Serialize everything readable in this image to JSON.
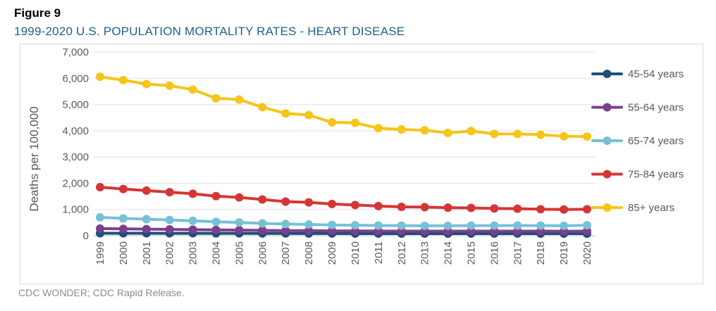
{
  "figure_label": "Figure 9",
  "source_note": "CDC WONDER; CDC Rapid Release.",
  "chart_data": {
    "type": "line",
    "title": "1999-2020 U.S. POPULATION MORTALITY RATES - HEART DISEASE",
    "xlabel": "",
    "ylabel": "Deaths per 100,000",
    "ylim": [
      0,
      7000
    ],
    "yticks": [
      0,
      1000,
      2000,
      3000,
      4000,
      5000,
      6000,
      7000
    ],
    "ytick_labels": [
      "0",
      "1,000",
      "2,000",
      "3,000",
      "4,000",
      "5,000",
      "6,000",
      "7,000"
    ],
    "grid": true,
    "legend_position": "right",
    "x": [
      "1999",
      "2000",
      "2001",
      "2002",
      "2003",
      "2004",
      "2005",
      "2006",
      "2007",
      "2008",
      "2009",
      "2010",
      "2011",
      "2012",
      "2013",
      "2014",
      "2015",
      "2016",
      "2017",
      "2018",
      "2019",
      "2020"
    ],
    "series": [
      {
        "name": "45-54 years",
        "color": "#1f4e79",
        "values": [
          95,
          95,
          93,
          92,
          92,
          90,
          89,
          87,
          86,
          85,
          83,
          82,
          82,
          82,
          82,
          81,
          82,
          82,
          82,
          81,
          80,
          80
        ]
      },
      {
        "name": "55-64 years",
        "color": "#7b3f8f",
        "values": [
          270,
          260,
          250,
          240,
          230,
          220,
          213,
          205,
          195,
          190,
          183,
          180,
          178,
          175,
          175,
          174,
          175,
          175,
          175,
          173,
          172,
          175
        ]
      },
      {
        "name": "65-74 years",
        "color": "#77c1d6",
        "values": [
          700,
          660,
          630,
          600,
          570,
          530,
          505,
          470,
          445,
          430,
          410,
          400,
          390,
          385,
          380,
          380,
          385,
          385,
          390,
          385,
          380,
          400
        ]
      },
      {
        "name": "75-84 years",
        "color": "#d63535",
        "values": [
          1850,
          1780,
          1720,
          1660,
          1600,
          1510,
          1460,
          1380,
          1300,
          1270,
          1210,
          1170,
          1130,
          1100,
          1090,
          1070,
          1060,
          1040,
          1030,
          1010,
          1000,
          1010
        ]
      },
      {
        "name": "85+ years",
        "color": "#f5c518",
        "values": [
          6060,
          5930,
          5780,
          5720,
          5570,
          5240,
          5190,
          4900,
          4660,
          4600,
          4320,
          4300,
          4100,
          4050,
          4020,
          3920,
          3990,
          3880,
          3880,
          3850,
          3790,
          3780
        ]
      }
    ]
  }
}
